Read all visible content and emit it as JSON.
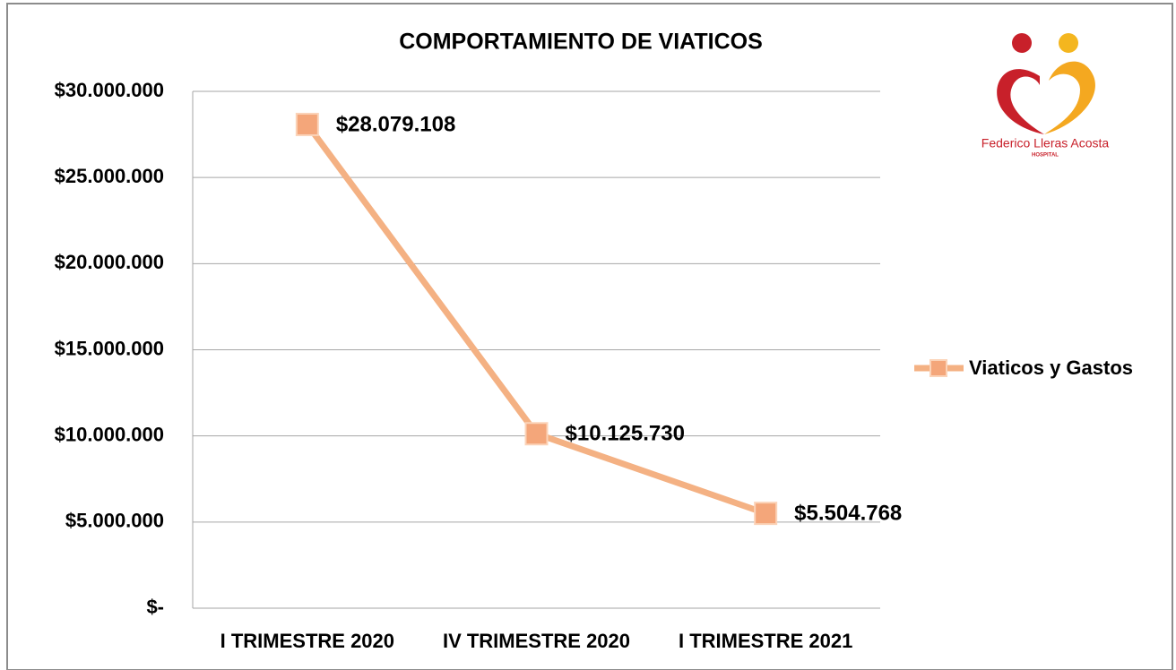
{
  "chart_data": {
    "type": "line",
    "title": "COMPORTAMIENTO  DE VIATICOS",
    "categories": [
      "I TRIMESTRE 2020",
      "IV TRIMESTRE 2020",
      "I TRIMESTRE 2021"
    ],
    "series": [
      {
        "name": "Viaticos y Gastos",
        "color": "#f4b183",
        "values": [
          28079108,
          10125730,
          5504768
        ],
        "value_labels": [
          "$28.079.108",
          "$10.125.730",
          "$5.504.768"
        ]
      }
    ],
    "ylim": [
      0,
      30000000
    ],
    "yticks": [
      {
        "value": 0,
        "label": "$-"
      },
      {
        "value": 5000000,
        "label": "$5.000.000"
      },
      {
        "value": 10000000,
        "label": "$10.000.000"
      },
      {
        "value": 15000000,
        "label": "$15.000.000"
      },
      {
        "value": 20000000,
        "label": "$20.000.000"
      },
      {
        "value": 25000000,
        "label": "$25.000.000"
      },
      {
        "value": 30000000,
        "label": "$30.000.000"
      }
    ],
    "grid": true,
    "legend": "right"
  },
  "logo": {
    "name": "Federico Lleras Acosta",
    "subtitle": "HOSPITAL"
  }
}
